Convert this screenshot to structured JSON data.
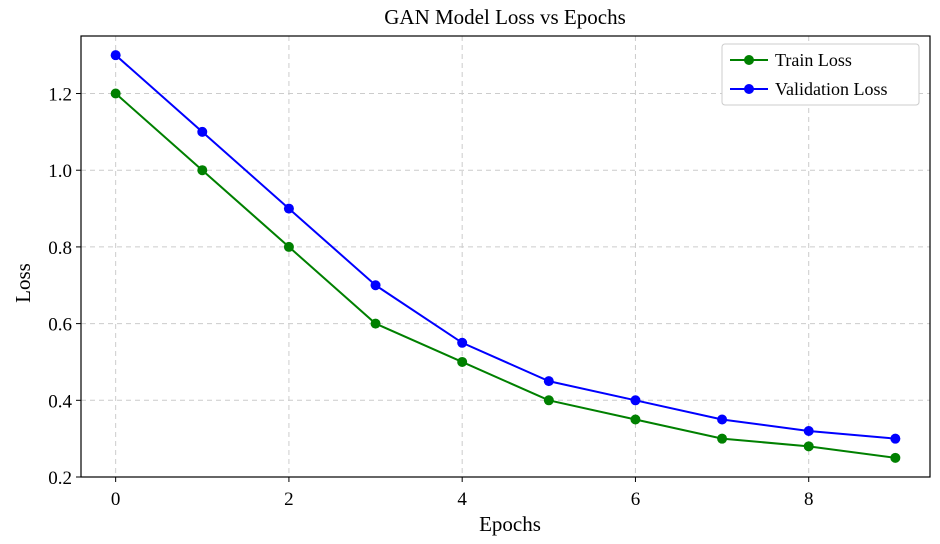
{
  "chart_data": {
    "type": "line",
    "title": "GAN Model Loss vs Epochs",
    "xlabel": "Epochs",
    "ylabel": "Loss",
    "x": [
      0,
      1,
      2,
      3,
      4,
      5,
      6,
      7,
      8,
      9
    ],
    "xlim": [
      -0.4,
      9.4
    ],
    "ylim": [
      0.2,
      1.35
    ],
    "xticks": [
      0,
      2,
      4,
      6,
      8
    ],
    "yticks": [
      0.2,
      0.4,
      0.6,
      0.8,
      1.0,
      1.2
    ],
    "ytick_labels": [
      "0.2",
      "0.4",
      "0.6",
      "0.8",
      "1.0",
      "1.2"
    ],
    "grid": true,
    "legend_position": "top-right",
    "series": [
      {
        "name": "Train Loss",
        "color": "#008000",
        "marker": "circle",
        "values": [
          1.2,
          1.0,
          0.8,
          0.6,
          0.5,
          0.4,
          0.35,
          0.3,
          0.28,
          0.25
        ]
      },
      {
        "name": "Validation Loss",
        "color": "#0000ff",
        "marker": "circle",
        "values": [
          1.3,
          1.1,
          0.9,
          0.7,
          0.55,
          0.45,
          0.4,
          0.35,
          0.32,
          0.3
        ]
      }
    ]
  }
}
